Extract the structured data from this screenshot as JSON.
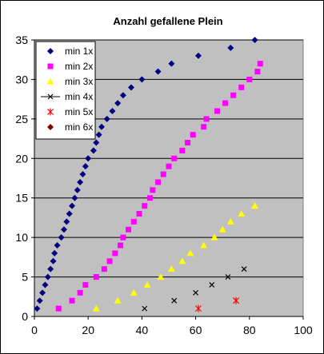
{
  "chart_data": {
    "type": "scatter",
    "title": "Anzahl gefallene Plein",
    "xlabel": "",
    "ylabel": "",
    "xlim": [
      0,
      100
    ],
    "ylim": [
      0,
      35
    ],
    "x_ticks": [
      0,
      20,
      40,
      60,
      80,
      100
    ],
    "y_ticks": [
      0,
      5,
      10,
      15,
      20,
      25,
      30,
      35
    ],
    "grid": "horizontal",
    "plot_background": "#c0c0c0",
    "legend_position": "top-left",
    "series": [
      {
        "name": "min 1x",
        "color": "#000080",
        "marker": "diamond",
        "points": [
          [
            1,
            1
          ],
          [
            2,
            2
          ],
          [
            3,
            3
          ],
          [
            4,
            4
          ],
          [
            5,
            5
          ],
          [
            6,
            6
          ],
          [
            7,
            7
          ],
          [
            7.5,
            8
          ],
          [
            8.5,
            9
          ],
          [
            10,
            10
          ],
          [
            11,
            11
          ],
          [
            12,
            12
          ],
          [
            13,
            13
          ],
          [
            14,
            14
          ],
          [
            15,
            15
          ],
          [
            16,
            16
          ],
          [
            17,
            17
          ],
          [
            18,
            18
          ],
          [
            19,
            19
          ],
          [
            20,
            20
          ],
          [
            22,
            21
          ],
          [
            23,
            22
          ],
          [
            24,
            23
          ],
          [
            25,
            24
          ],
          [
            27,
            25
          ],
          [
            29,
            26
          ],
          [
            31,
            27
          ],
          [
            33,
            28
          ],
          [
            36,
            29
          ],
          [
            40,
            30
          ],
          [
            46,
            31
          ],
          [
            51,
            32
          ],
          [
            61,
            33
          ],
          [
            73,
            34
          ],
          [
            82,
            35
          ]
        ]
      },
      {
        "name": "min 2x",
        "color": "#ff00ff",
        "marker": "square",
        "points": [
          [
            9,
            1
          ],
          [
            14,
            2
          ],
          [
            17,
            3
          ],
          [
            19,
            4
          ],
          [
            23,
            5
          ],
          [
            26,
            6
          ],
          [
            28,
            7
          ],
          [
            30,
            8
          ],
          [
            32,
            9
          ],
          [
            33,
            10
          ],
          [
            35,
            11
          ],
          [
            37,
            12
          ],
          [
            39,
            13
          ],
          [
            41,
            14
          ],
          [
            43,
            15
          ],
          [
            44,
            16
          ],
          [
            46,
            17
          ],
          [
            48,
            18
          ],
          [
            50,
            19
          ],
          [
            52,
            20
          ],
          [
            55,
            21
          ],
          [
            57,
            22
          ],
          [
            59,
            23
          ],
          [
            63,
            24
          ],
          [
            64,
            25
          ],
          [
            68,
            26
          ],
          [
            71,
            27
          ],
          [
            74,
            28
          ],
          [
            77,
            29
          ],
          [
            80,
            30
          ],
          [
            83,
            31
          ],
          [
            84,
            32
          ]
        ]
      },
      {
        "name": "min 3x",
        "color": "#ffff00",
        "marker": "triangle",
        "points": [
          [
            23,
            1
          ],
          [
            31,
            2
          ],
          [
            37,
            3
          ],
          [
            42,
            4
          ],
          [
            47,
            5
          ],
          [
            51,
            6
          ],
          [
            55,
            7
          ],
          [
            58,
            8
          ],
          [
            63,
            9
          ],
          [
            67,
            10
          ],
          [
            70,
            11
          ],
          [
            73,
            12
          ],
          [
            77,
            13
          ],
          [
            82,
            14
          ]
        ]
      },
      {
        "name": "min 4x",
        "color": "#000000",
        "marker": "x",
        "points": [
          [
            41,
            1
          ],
          [
            52,
            2
          ],
          [
            60,
            3
          ],
          [
            66,
            4
          ],
          [
            72,
            5
          ],
          [
            78,
            6
          ]
        ]
      },
      {
        "name": "min 5x",
        "color": "#ff0000",
        "marker": "star",
        "points": [
          [
            61,
            1
          ],
          [
            75,
            2
          ]
        ]
      },
      {
        "name": "min 6x",
        "color": "#800000",
        "marker": "diamond",
        "points": []
      }
    ]
  }
}
